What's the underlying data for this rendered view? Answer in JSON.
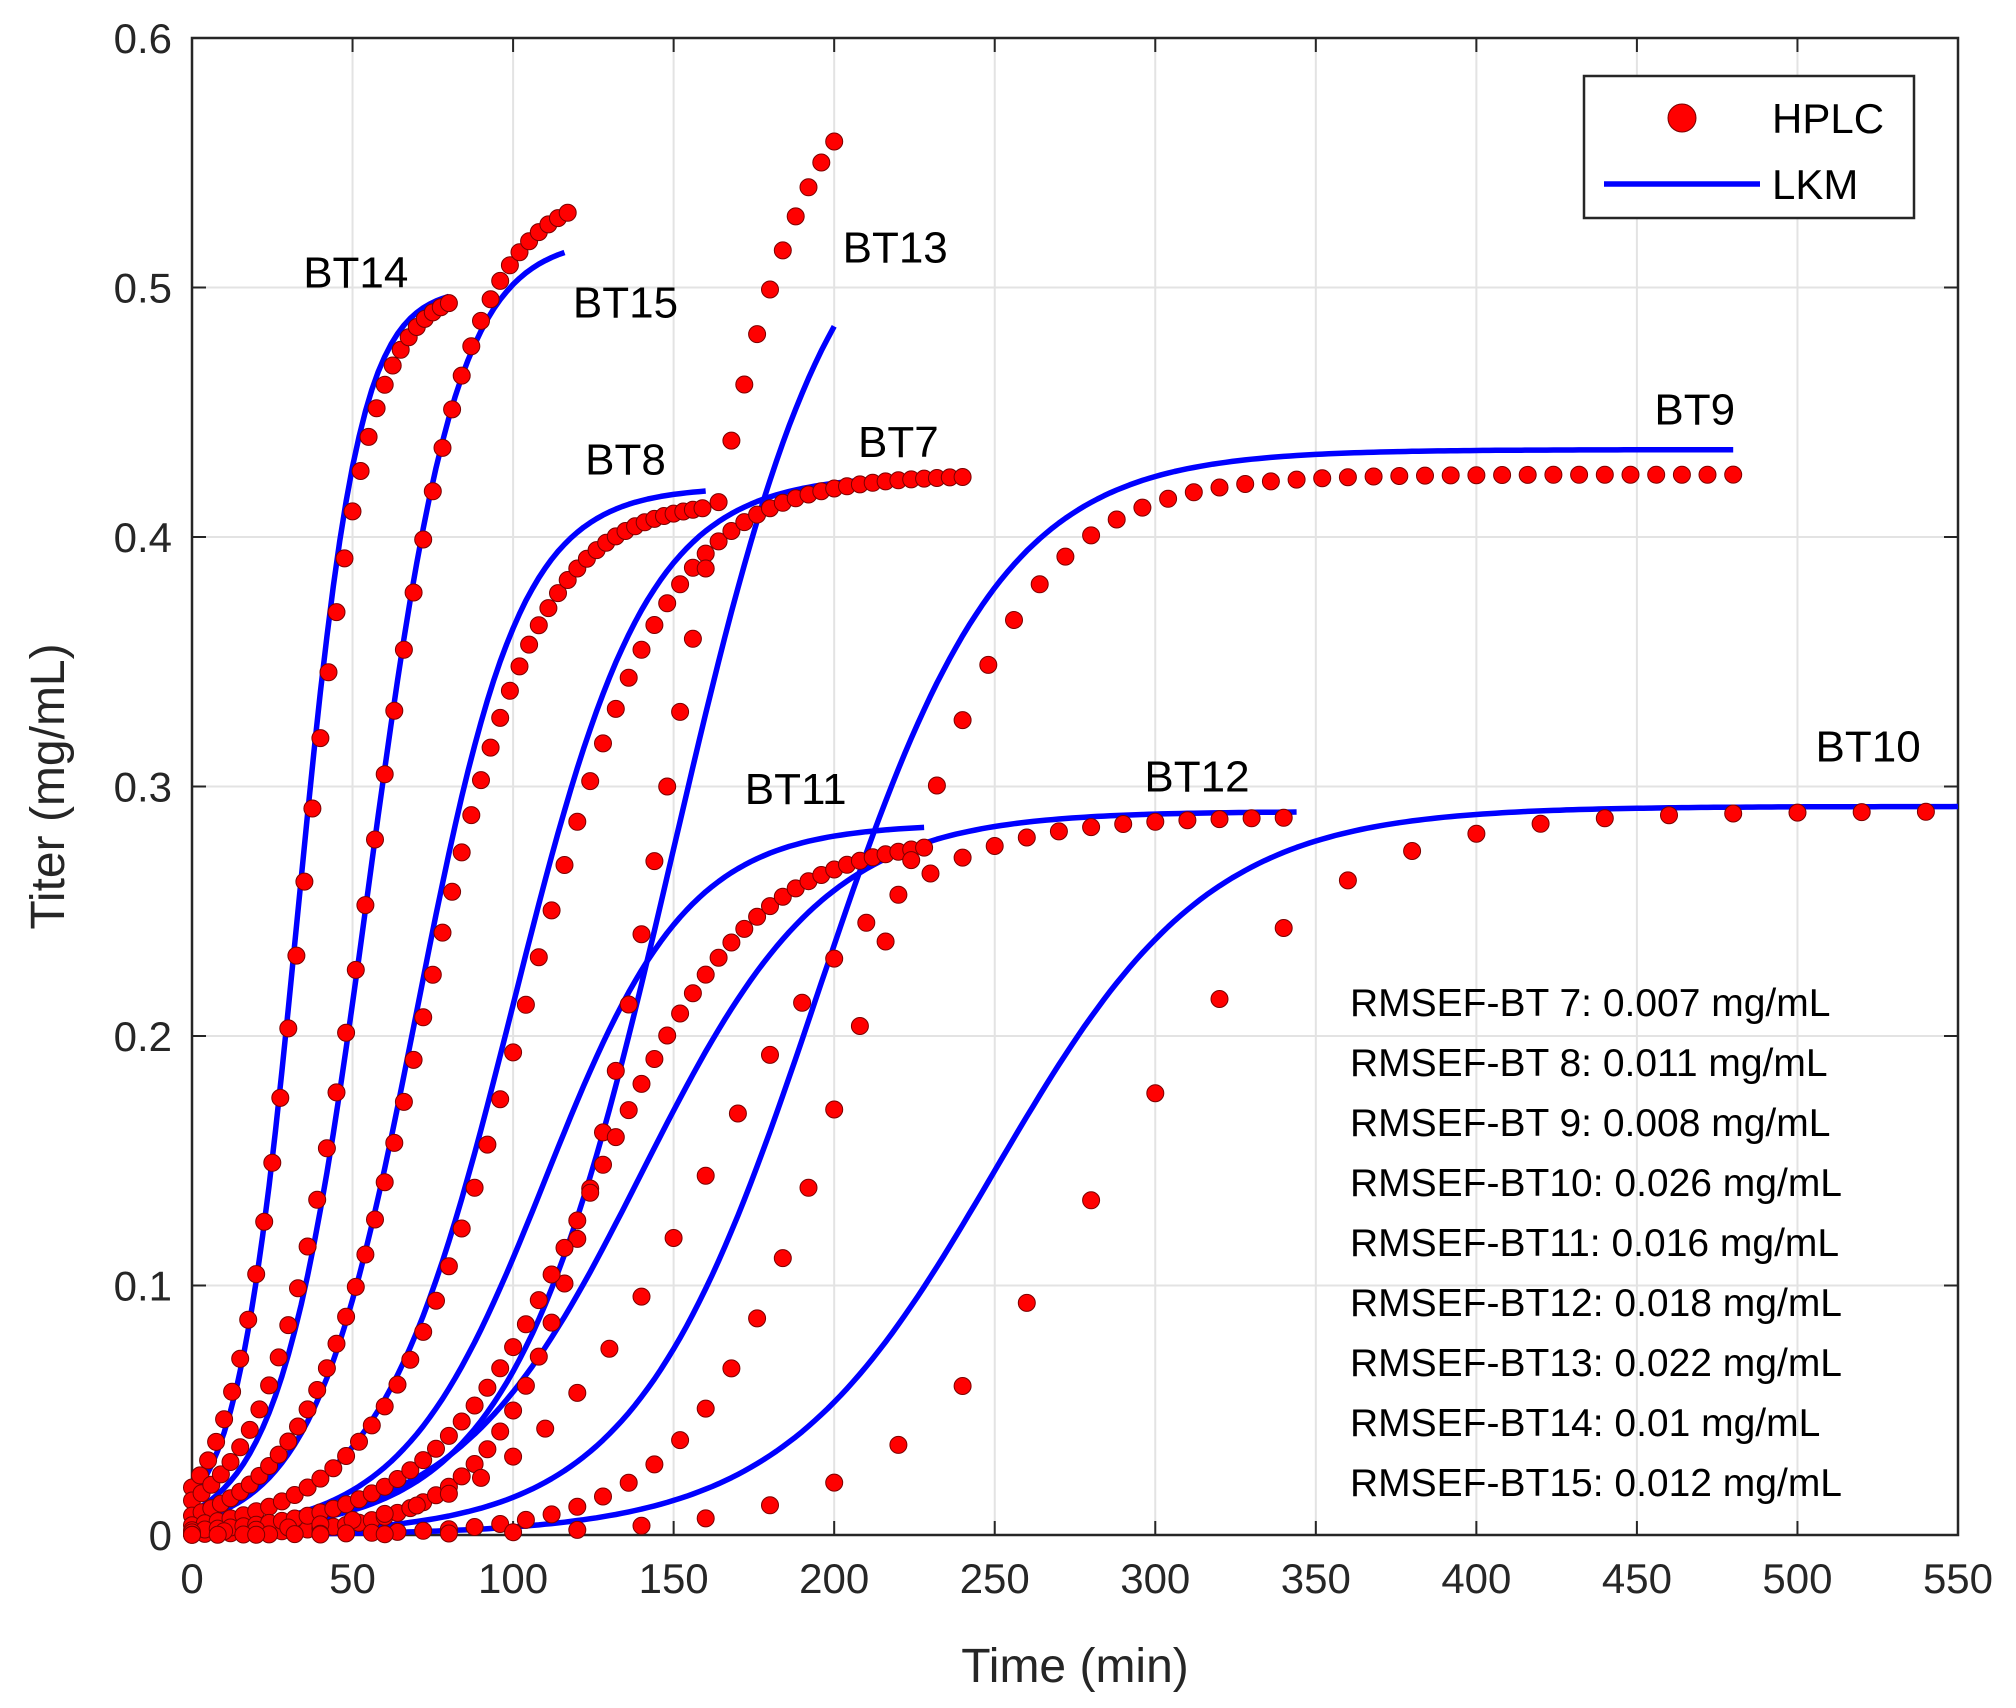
{
  "chart_data": {
    "type": "line",
    "xlabel": "Time (min)",
    "ylabel": "Titer (mg/mL)",
    "xlim": [
      0,
      550
    ],
    "ylim": [
      0,
      0.6
    ],
    "xticks": [
      0,
      50,
      100,
      150,
      200,
      250,
      300,
      350,
      400,
      450,
      500,
      550
    ],
    "yticks": [
      0,
      0.1,
      0.2,
      0.3,
      0.4,
      0.5,
      0.6
    ],
    "ytick_labels": [
      "0",
      "0.1",
      "0.2",
      "0.3",
      "0.4",
      "0.5",
      "0.6"
    ],
    "grid": true,
    "legend": {
      "placement": "top-right",
      "entries": [
        {
          "label": "HPLC",
          "style": "marker",
          "color": "#ff0000"
        },
        {
          "label": "LKM",
          "style": "line",
          "color": "#0000ff"
        }
      ]
    },
    "colors": {
      "hplc": "#ff0000",
      "lkm": "#0000ff"
    },
    "curves": [
      {
        "label": "BT14",
        "label_pos": [
          51,
          0.5
        ],
        "end": 80,
        "amp": 0.5,
        "tm": 33,
        "k": 0.105,
        "hplc_amp": 0.5,
        "hplc_tm": 34,
        "hplc_k": 0.095,
        "hplc_step": 2.5
      },
      {
        "label": "BT15",
        "label_pos": [
          135,
          0.488
        ],
        "end": 117,
        "amp": 0.52,
        "tm": 55,
        "k": 0.073,
        "hplc_amp": 0.54,
        "hplc_tm": 56,
        "hplc_k": 0.065,
        "hplc_step": 3
      },
      {
        "label": "BT8",
        "label_pos": [
          135,
          0.425
        ],
        "end": 160,
        "amp": 0.42,
        "tm": 70,
        "k": 0.062,
        "hplc_amp": 0.415,
        "hplc_tm": 72,
        "hplc_k": 0.055,
        "hplc_step": 3
      },
      {
        "label": "BT7",
        "label_pos": [
          220,
          0.432
        ],
        "end": 240,
        "amp": 0.425,
        "tm": 100,
        "k": 0.048,
        "hplc_amp": 0.425,
        "hplc_tm": 104,
        "hplc_k": 0.045,
        "hplc_step": 4
      },
      {
        "label": "BT13",
        "label_pos": [
          219,
          0.51
        ],
        "end": 200,
        "amp": 0.55,
        "tm": 150,
        "k": 0.04,
        "hplc_amp": 0.6,
        "hplc_tm": 148,
        "hplc_k": 0.05,
        "hplc_step": 4
      },
      {
        "label": "BT11",
        "label_pos": [
          188,
          0.293
        ],
        "end": 229,
        "amp": 0.285,
        "tm": 110,
        "k": 0.045,
        "hplc_amp": 0.28,
        "hplc_tm": 125,
        "hplc_k": 0.04,
        "hplc_step": 4
      },
      {
        "label": "BT12",
        "label_pos": [
          313,
          0.298
        ],
        "end": 345,
        "amp": 0.29,
        "tm": 140,
        "k": 0.035,
        "hplc_amp": 0.288,
        "hplc_tm": 160,
        "hplc_k": 0.035,
        "hplc_step": 10
      },
      {
        "label": "BT9",
        "label_pos": [
          468,
          0.445
        ],
        "end": 480,
        "amp": 0.435,
        "tm": 195,
        "k": 0.035,
        "hplc_amp": 0.425,
        "hplc_tm": 210,
        "hplc_k": 0.04,
        "hplc_step": 8
      },
      {
        "label": "BT10",
        "label_pos": [
          522,
          0.31
        ],
        "end": 550,
        "amp": 0.292,
        "tm": 250,
        "k": 0.03,
        "hplc_amp": 0.29,
        "hplc_tm": 285,
        "hplc_k": 0.03,
        "hplc_step": 20
      }
    ],
    "annotations": [
      "RMSEF-BT 7: 0.007 mg/mL",
      "RMSEF-BT 8: 0.011 mg/mL",
      "RMSEF-BT 9: 0.008 mg/mL",
      "RMSEF-BT10: 0.026 mg/mL",
      "RMSEF-BT11: 0.016 mg/mL",
      "RMSEF-BT12: 0.018 mg/mL",
      "RMSEF-BT13: 0.022 mg/mL",
      "RMSEF-BT14: 0.01  mg/mL",
      "RMSEF-BT15: 0.012 mg/mL"
    ]
  }
}
